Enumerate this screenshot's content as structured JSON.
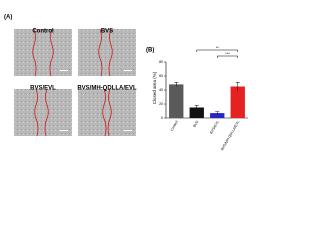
{
  "panel_a": {
    "label": "(A)",
    "images": [
      {
        "label": "Control"
      },
      {
        "label": "BVS"
      },
      {
        "label": "BVS/EVL"
      },
      {
        "label": "BVS/MH-QDLLA/EVL"
      }
    ]
  },
  "chart_data": {
    "type": "bar",
    "panel_label": "(B)",
    "y_label": "Closed area (%)",
    "categories": [
      "Control",
      "BVS",
      "BVS/EVL",
      "BVS/MH-QDLLA/EVL"
    ],
    "values": [
      48,
      15,
      7,
      45
    ],
    "errors": [
      3,
      3,
      2,
      6
    ],
    "colors": [
      "#5a5a5a",
      "#111111",
      "#2626c8",
      "#e52222"
    ],
    "ylim": [
      0,
      80
    ],
    "yticks": [
      0,
      20,
      40,
      60,
      80
    ],
    "annotations": [
      {
        "text": "**"
      },
      {
        "text": "***"
      }
    ]
  }
}
